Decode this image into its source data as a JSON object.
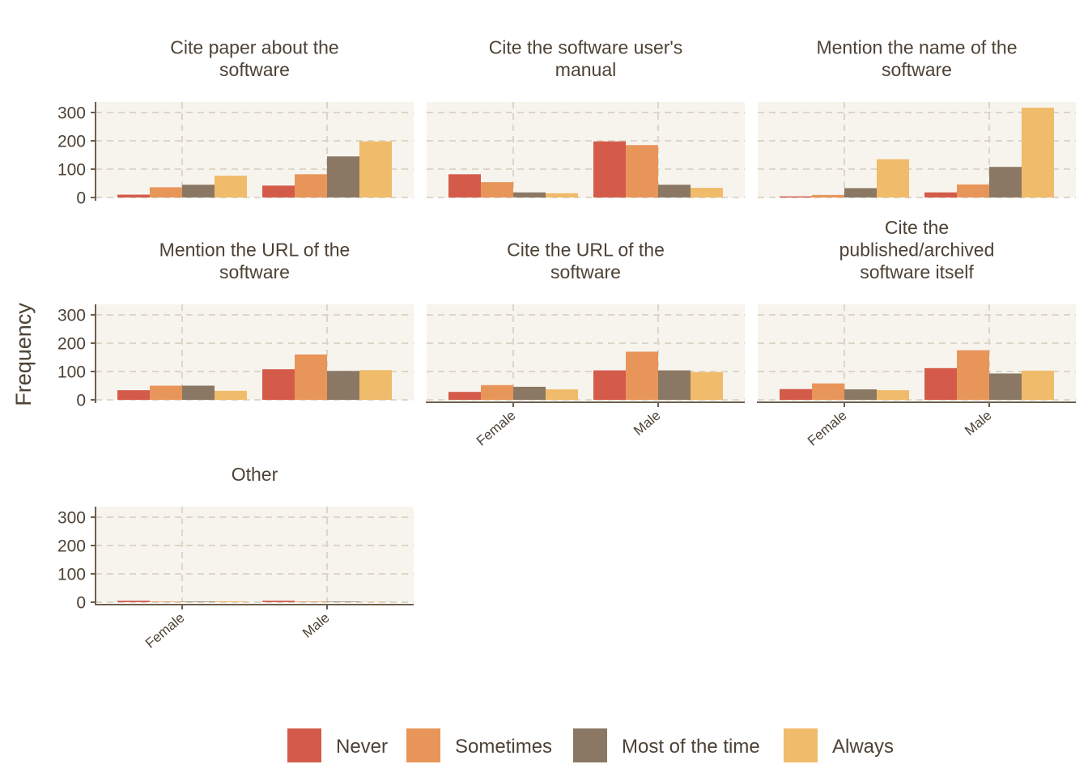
{
  "chart_data": {
    "type": "bar",
    "categories": [
      "Female",
      "Male"
    ],
    "series_names": [
      "Never",
      "Sometimes",
      "Most of the time",
      "Always"
    ],
    "colors": [
      "#d45b4a",
      "#e8955a",
      "#8b7864",
      "#f0bb6a"
    ],
    "ylabel": "Frequency",
    "xlabel": "",
    "ylim": [
      0,
      335
    ],
    "yticks": [
      0,
      100,
      200,
      300
    ],
    "grid": true,
    "legend_position": "bottom",
    "facets": [
      {
        "title": [
          "Cite paper about the",
          "software"
        ],
        "values": [
          [
            10,
            36,
            45,
            77
          ],
          [
            42,
            82,
            145,
            198
          ]
        ]
      },
      {
        "title": [
          "Cite the software user's",
          "manual"
        ],
        "values": [
          [
            82,
            54,
            18,
            15
          ],
          [
            198,
            185,
            45,
            34
          ]
        ]
      },
      {
        "title": [
          "Mention the name of the",
          "software"
        ],
        "values": [
          [
            4,
            9,
            33,
            135
          ],
          [
            18,
            46,
            108,
            317
          ]
        ]
      },
      {
        "title": [
          "Mention the URL of the",
          "software"
        ],
        "values": [
          [
            34,
            50,
            50,
            32
          ],
          [
            108,
            160,
            102,
            105
          ]
        ]
      },
      {
        "title": [
          "Cite the URL of the",
          "software"
        ],
        "values": [
          [
            28,
            52,
            46,
            37
          ],
          [
            104,
            170,
            104,
            98
          ]
        ]
      },
      {
        "title": [
          "Cite the",
          "published/archived",
          "software itself"
        ],
        "values": [
          [
            38,
            58,
            37,
            34
          ],
          [
            112,
            175,
            93,
            103
          ]
        ]
      },
      {
        "title": [
          "Other"
        ],
        "values": [
          [
            5,
            2,
            2,
            3
          ],
          [
            5,
            2,
            2,
            1
          ]
        ]
      }
    ]
  }
}
